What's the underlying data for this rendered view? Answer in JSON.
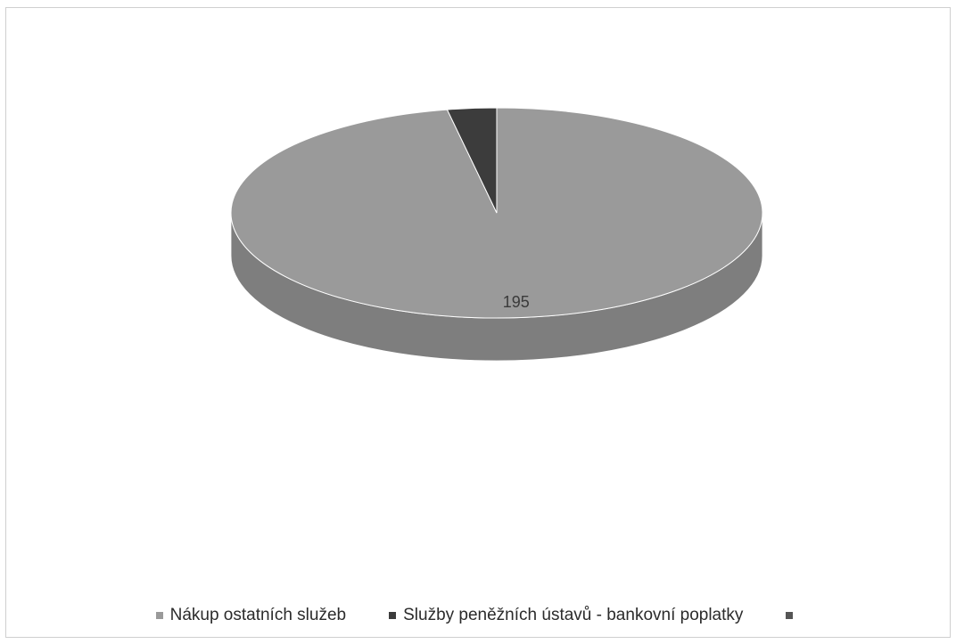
{
  "chart_data": {
    "type": "pie",
    "title": "",
    "style": "3d",
    "legend_position": "bottom",
    "slices": [
      {
        "label": "Nákup ostatních služeb",
        "value": 195,
        "data_label": "195",
        "color": "#9a9a9a"
      },
      {
        "label": "Služby peněžních ústavů - bankovní poplatky",
        "value": 6,
        "data_label": "",
        "color": "#3c3c3c"
      },
      {
        "label": "",
        "value": 0,
        "data_label": "",
        "color": "#555555"
      }
    ]
  }
}
